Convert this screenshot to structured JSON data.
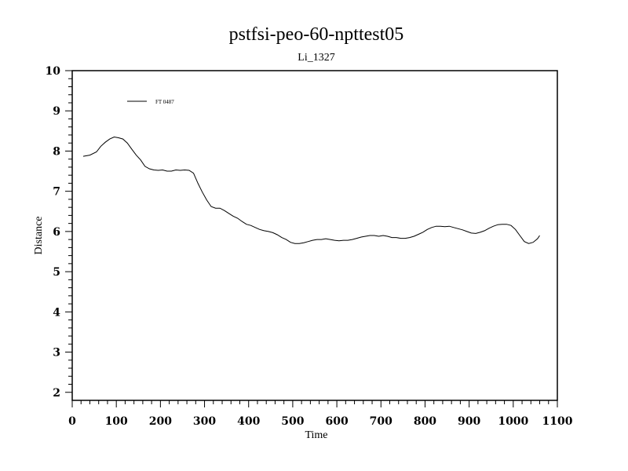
{
  "chart_data": {
    "type": "line",
    "title": "pstfsi-peo-60-npttest05",
    "subtitle": "Li_1327",
    "xlabel": "Time",
    "ylabel": "Distance",
    "xlim": [
      0,
      1100
    ],
    "ylim": [
      1.8,
      10
    ],
    "xticks": [
      "0",
      "100",
      "200",
      "300",
      "400",
      "500",
      "600",
      "700",
      "800",
      "900",
      "1000",
      "1100"
    ],
    "yticks": [
      "2",
      "3",
      "4",
      "5",
      "6",
      "7",
      "8",
      "9",
      "10"
    ],
    "legend_position": "top-left",
    "grid": false,
    "series": [
      {
        "name": "FT 0487",
        "color": "#000000",
        "x": [
          25,
          40,
          55,
          65,
          75,
          85,
          95,
          105,
          115,
          125,
          135,
          145,
          155,
          165,
          175,
          185,
          195,
          205,
          215,
          225,
          235,
          245,
          255,
          265,
          275,
          285,
          295,
          305,
          315,
          325,
          335,
          345,
          355,
          365,
          375,
          385,
          395,
          405,
          415,
          425,
          435,
          445,
          455,
          465,
          475,
          485,
          495,
          505,
          515,
          525,
          535,
          545,
          555,
          565,
          575,
          585,
          595,
          605,
          615,
          625,
          635,
          645,
          655,
          665,
          675,
          685,
          695,
          705,
          715,
          725,
          735,
          745,
          755,
          765,
          775,
          785,
          795,
          805,
          815,
          825,
          835,
          845,
          855,
          865,
          875,
          885,
          895,
          905,
          915,
          925,
          935,
          945,
          955,
          965,
          975,
          985,
          995,
          1005,
          1015,
          1025,
          1035,
          1045,
          1055,
          1060
        ],
        "y": [
          7.87,
          7.9,
          7.98,
          8.12,
          8.22,
          8.3,
          8.35,
          8.33,
          8.3,
          8.2,
          8.05,
          7.9,
          7.78,
          7.62,
          7.56,
          7.53,
          7.52,
          7.53,
          7.5,
          7.5,
          7.53,
          7.52,
          7.53,
          7.52,
          7.45,
          7.2,
          6.98,
          6.78,
          6.62,
          6.58,
          6.58,
          6.52,
          6.45,
          6.38,
          6.33,
          6.25,
          6.18,
          6.15,
          6.1,
          6.05,
          6.02,
          6.0,
          5.97,
          5.92,
          5.85,
          5.8,
          5.73,
          5.7,
          5.7,
          5.72,
          5.75,
          5.78,
          5.8,
          5.8,
          5.82,
          5.8,
          5.78,
          5.77,
          5.78,
          5.78,
          5.8,
          5.83,
          5.86,
          5.88,
          5.9,
          5.9,
          5.88,
          5.9,
          5.88,
          5.85,
          5.85,
          5.83,
          5.83,
          5.85,
          5.88,
          5.93,
          5.98,
          6.05,
          6.1,
          6.13,
          6.13,
          6.12,
          6.13,
          6.1,
          6.07,
          6.04,
          6.0,
          5.96,
          5.95,
          5.98,
          6.02,
          6.08,
          6.13,
          6.17,
          6.18,
          6.18,
          6.15,
          6.05,
          5.9,
          5.75,
          5.7,
          5.73,
          5.82,
          5.9
        ]
      }
    ]
  }
}
